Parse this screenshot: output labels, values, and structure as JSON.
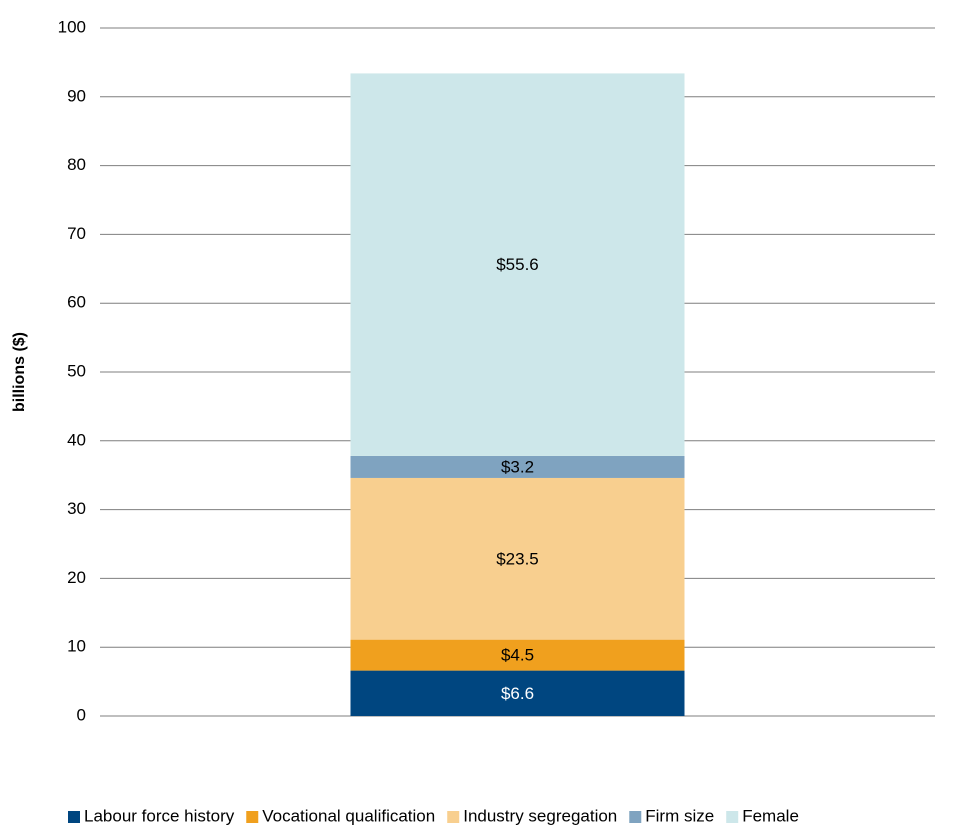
{
  "chart_data": {
    "type": "stacked_bar",
    "y_label": "billions ($)",
    "categories": [
      null
    ],
    "series": [
      {
        "name": "Labour force history",
        "color": "#004680",
        "values": [
          6.6
        ],
        "value_labels": [
          "$6.6"
        ]
      },
      {
        "name": "Vocational qualification",
        "color": "#f0a01e",
        "values": [
          4.5
        ],
        "value_labels": [
          "$4.5"
        ]
      },
      {
        "name": "Industry segregation",
        "color": "#f8cf8f",
        "values": [
          23.5
        ],
        "value_labels": [
          "$23.5"
        ]
      },
      {
        "name": "Firm size",
        "color": "#7fa3c0",
        "values": [
          3.2
        ],
        "value_labels": [
          "$3.2"
        ]
      },
      {
        "name": "Female",
        "color": "#cde7ea",
        "values": [
          55.6
        ],
        "value_labels": [
          "$55.6"
        ]
      }
    ],
    "ylim": [
      0,
      100
    ],
    "yticks": [
      0,
      10,
      20,
      30,
      40,
      50,
      60,
      70,
      80,
      90,
      100
    ],
    "grid": true,
    "legend": "bottom"
  }
}
